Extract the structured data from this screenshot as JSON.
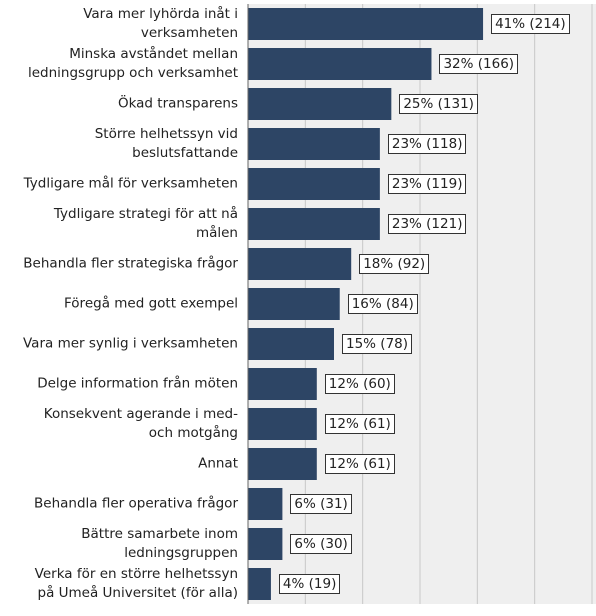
{
  "chart_data": {
    "type": "bar",
    "orientation": "horizontal",
    "categories": [
      "Vara mer lyhörda inåt i\nverksamheten",
      "Minska avståndet mellan\nledningsgrupp och verksamhet",
      "Ökad transparens",
      "Större helhetssyn vid\nbeslutsfattande",
      "Tydligare mål för verksamheten",
      "Tydligare strategi för att nå\nmålen",
      "Behandla fler strategiska frågor",
      "Föregå med gott exempel",
      "Vara mer synlig i verksamheten",
      "Delge information från möten",
      "Konsekvent agerande i med-\noch motgång",
      "Annat",
      "Behandla fler operativa frågor",
      "Bättre samarbete inom\nledningsgruppen",
      "Verka för en större helhetssyn\npå Umeå Universitet (för alla)"
    ],
    "values": [
      41,
      32,
      25,
      23,
      23,
      23,
      18,
      16,
      15,
      12,
      12,
      12,
      6,
      6,
      4
    ],
    "value_labels": [
      "41% (214)",
      "32% (166)",
      "25% (131)",
      "23% (118)",
      "23% (119)",
      "23% (121)",
      "18% (92)",
      "16% (84)",
      "15% (78)",
      "12% (60)",
      "12% (61)",
      "12% (61)",
      "6% (31)",
      "6% (30)",
      "4% (19)"
    ],
    "color": "#2d4565",
    "xlim": [
      0,
      60
    ],
    "xticks": [
      0,
      10,
      20,
      30,
      40,
      50,
      60
    ],
    "grid": true
  }
}
